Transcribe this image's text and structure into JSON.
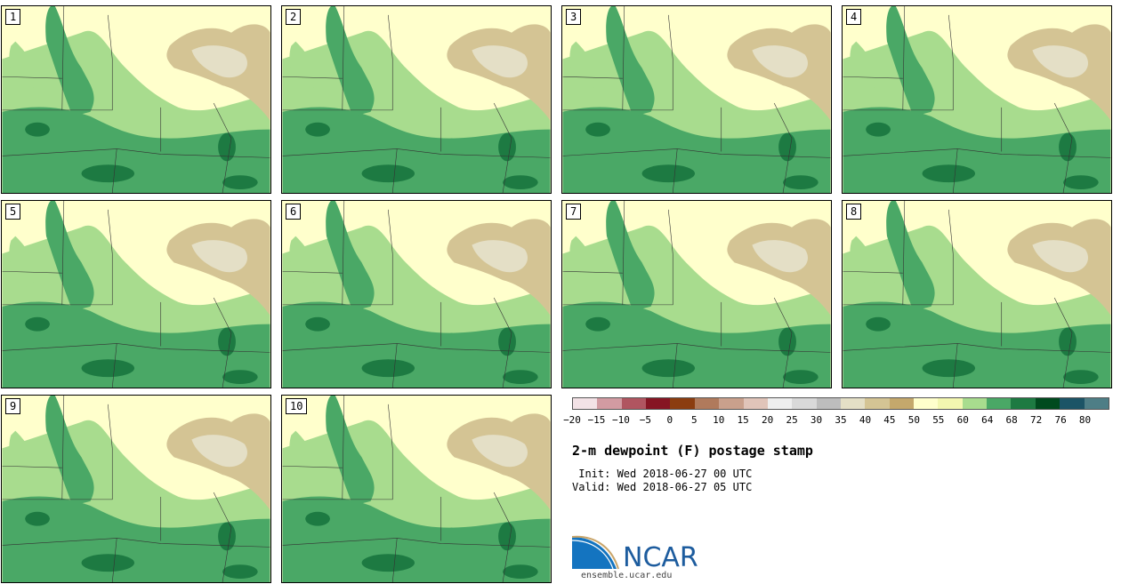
{
  "panels": [
    {
      "number": "1"
    },
    {
      "number": "2"
    },
    {
      "number": "3"
    },
    {
      "number": "4"
    },
    {
      "number": "5"
    },
    {
      "number": "6"
    },
    {
      "number": "7"
    },
    {
      "number": "8"
    },
    {
      "number": "9"
    },
    {
      "number": "10"
    }
  ],
  "colorbar": {
    "colors": [
      "#f3e2e6",
      "#d29ba2",
      "#b05560",
      "#861523",
      "#8b3d10",
      "#b07a5c",
      "#c9a08c",
      "#e0c4b9",
      "#eeeeee",
      "#d9d9d9",
      "#bdbdbd",
      "#e4dfc6",
      "#d4c494",
      "#c4a86c",
      "#ffffcc",
      "#f3f7b0",
      "#a8dc8e",
      "#4aa866",
      "#1d7a42",
      "#004a1e",
      "#1c5466",
      "#4e7e86"
    ],
    "tick_labels": [
      "−20",
      "−15",
      "−10",
      "−5",
      "0",
      "5",
      "10",
      "15",
      "20",
      "25",
      "30",
      "35",
      "40",
      "45",
      "50",
      "55",
      "60",
      "64",
      "68",
      "72",
      "76",
      "80"
    ]
  },
  "title": "2-m dewpoint (F) postage stamp",
  "init_line": " Init: Wed 2018-06-27 00 UTC",
  "valid_line": "Valid: Wed 2018-06-27 05 UTC",
  "logo": {
    "name": "NCAR",
    "url": "ensemble.ucar.edu"
  }
}
